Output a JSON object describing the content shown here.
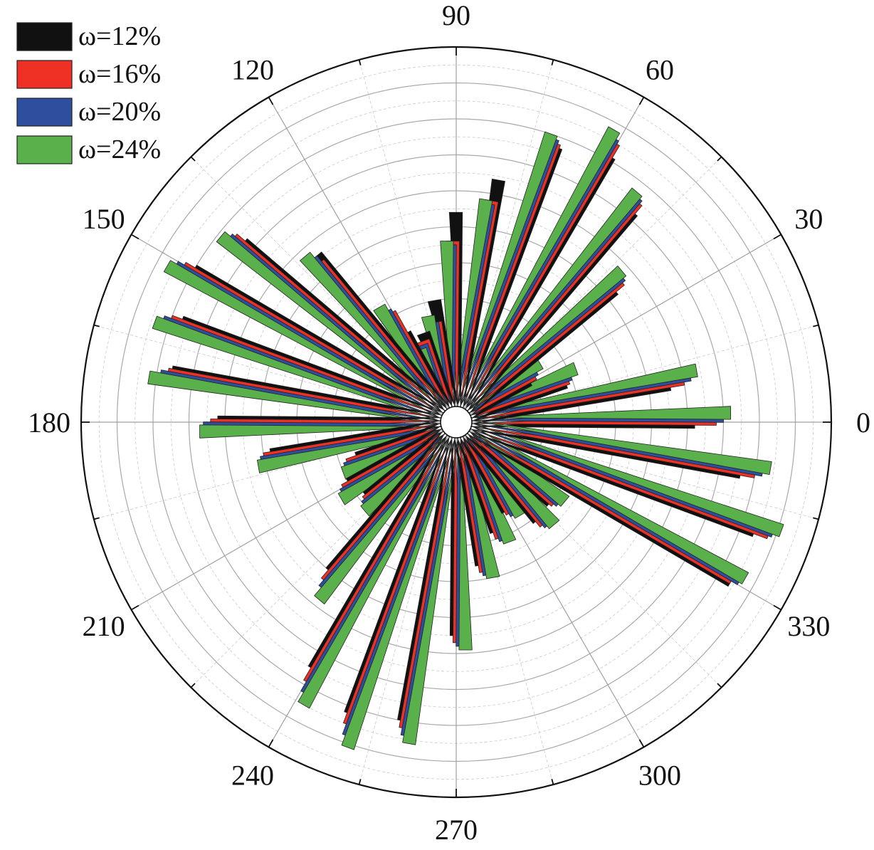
{
  "chart_data": {
    "type": "polar-bar",
    "angle_unit": "degrees",
    "bin_width_deg": 10,
    "angle_ticks": [
      "0",
      "30",
      "60",
      "90",
      "120",
      "150",
      "180",
      "210",
      "240",
      "270",
      "300",
      "330"
    ],
    "radial_range": [
      0,
      1
    ],
    "grid": true,
    "legend_position": "top-left",
    "categories": [
      0,
      10,
      20,
      30,
      40,
      50,
      60,
      70,
      80,
      90,
      100,
      110,
      120,
      130,
      140,
      150,
      160,
      170,
      180,
      190,
      200,
      210,
      220,
      230,
      240,
      250,
      260,
      270,
      280,
      290,
      300,
      310,
      320,
      330,
      340,
      350
    ],
    "series": [
      {
        "name": "ω=12%",
        "color": "#111111",
        "values": [
          0.62,
          0.56,
          0.28,
          0.19,
          0.53,
          0.72,
          0.81,
          0.77,
          0.64,
          0.54,
          0.3,
          0.22,
          0.24,
          0.56,
          0.73,
          0.8,
          0.77,
          0.76,
          0.62,
          0.48,
          0.25,
          0.3,
          0.28,
          0.5,
          0.75,
          0.82,
          0.8,
          0.55,
          0.36,
          0.28,
          0.24,
          0.31,
          0.3,
          0.84,
          0.84,
          0.76
        ]
      },
      {
        "name": "ω=16%",
        "color": "#ee3124",
        "values": [
          0.68,
          0.6,
          0.29,
          0.21,
          0.56,
          0.75,
          0.85,
          0.78,
          0.58,
          0.46,
          0.24,
          0.2,
          0.31,
          0.54,
          0.76,
          0.83,
          0.8,
          0.77,
          0.64,
          0.5,
          0.28,
          0.32,
          0.29,
          0.53,
          0.79,
          0.85,
          0.82,
          0.57,
          0.38,
          0.3,
          0.25,
          0.33,
          0.31,
          0.84,
          0.88,
          0.8
        ]
      },
      {
        "name": "ω=20%",
        "color": "#2e4f9e",
        "values": [
          0.7,
          0.62,
          0.3,
          0.22,
          0.57,
          0.76,
          0.86,
          0.79,
          0.57,
          0.45,
          0.24,
          0.19,
          0.32,
          0.56,
          0.77,
          0.85,
          0.82,
          0.79,
          0.66,
          0.51,
          0.29,
          0.33,
          0.3,
          0.55,
          0.82,
          0.88,
          0.84,
          0.58,
          0.39,
          0.31,
          0.26,
          0.34,
          0.32,
          0.86,
          0.89,
          0.82
        ]
      },
      {
        "name": "ω=24%",
        "color": "#5ab04a",
        "values": [
          0.72,
          0.64,
          0.32,
          0.24,
          0.58,
          0.77,
          0.88,
          0.8,
          0.58,
          0.46,
          0.26,
          0.18,
          0.34,
          0.58,
          0.79,
          0.87,
          0.84,
          0.82,
          0.67,
          0.52,
          0.3,
          0.34,
          0.31,
          0.58,
          0.85,
          0.91,
          0.86,
          0.59,
          0.4,
          0.32,
          0.27,
          0.35,
          0.33,
          0.87,
          0.91,
          0.84
        ]
      }
    ]
  }
}
